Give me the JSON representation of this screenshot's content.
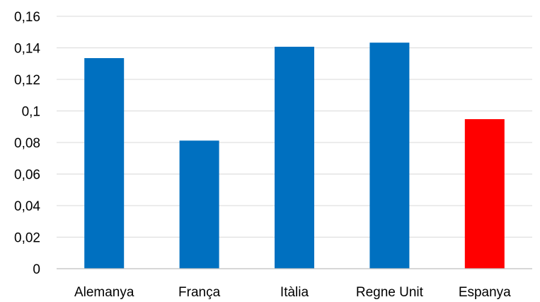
{
  "chart_data": {
    "type": "bar",
    "title": "",
    "xlabel": "",
    "ylabel": "",
    "categories": [
      "Alemanya",
      "França",
      "Itàlia",
      "Regne Unit",
      "Espanya"
    ],
    "values": [
      0.1335,
      0.0812,
      0.1407,
      0.1433,
      0.0948
    ],
    "ylim": [
      0,
      0.16
    ],
    "yticks": [
      0,
      0.02,
      0.04,
      0.06,
      0.08,
      0.1,
      0.12,
      0.14,
      0.16
    ],
    "ytick_labels": [
      "0",
      "0,02",
      "0,04",
      "0,06",
      "0,08",
      "0,1",
      "0,12",
      "0,14",
      "0,16"
    ],
    "grid": true,
    "legend": "none",
    "colors": {
      "default_bar": "#0070c0",
      "highlight_bar": "#ff0000"
    },
    "highlight_category": "Espanya"
  }
}
